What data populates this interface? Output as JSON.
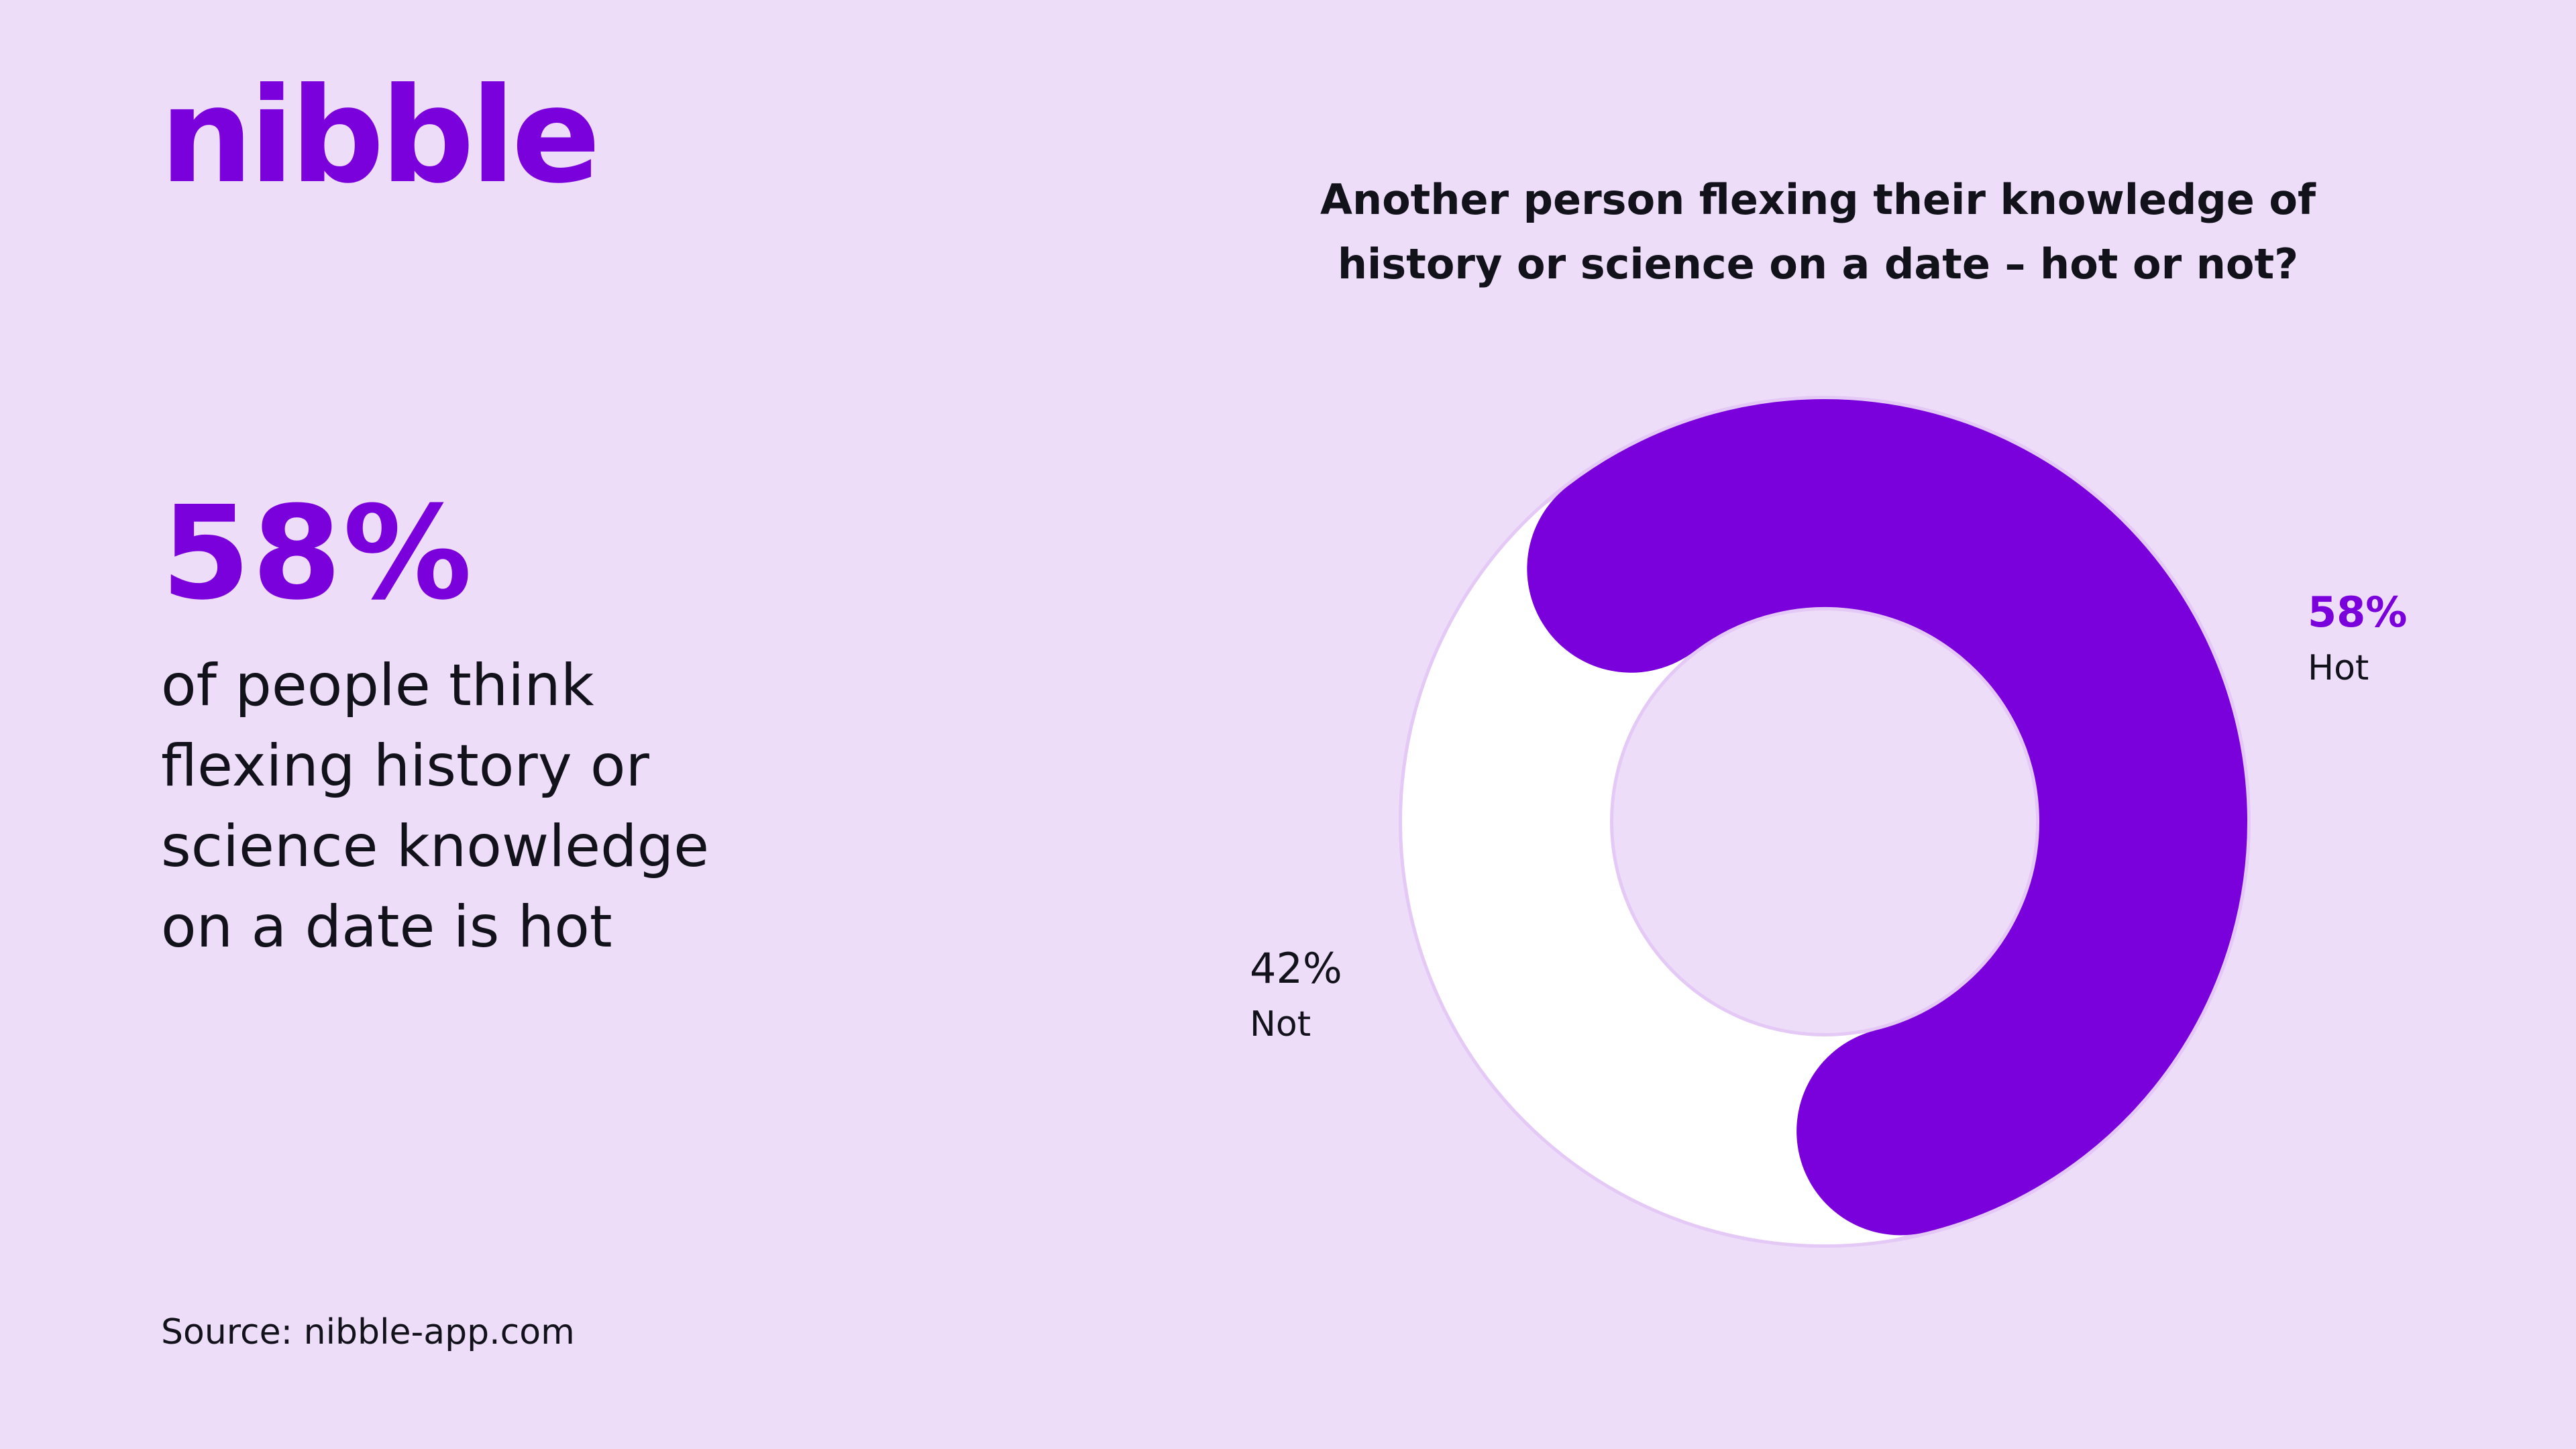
{
  "brand": {
    "logo_text": "nibble",
    "accent_color": "#7A00DC"
  },
  "headline": {
    "stat": "58%",
    "text": "of people think flexing history or science knowledge on a date is hot"
  },
  "source": "Source: nibble-app.com",
  "chart_data": {
    "type": "pie",
    "title": "Another person flexing their knowledge of history or science on a date – hot or not?",
    "donut": true,
    "slices": [
      {
        "label": "Hot",
        "value": 58,
        "display": "58%",
        "color": "#7A00DC"
      },
      {
        "label": "Not",
        "value": 42,
        "display": "42%",
        "color": "#FFFFFF"
      }
    ]
  }
}
